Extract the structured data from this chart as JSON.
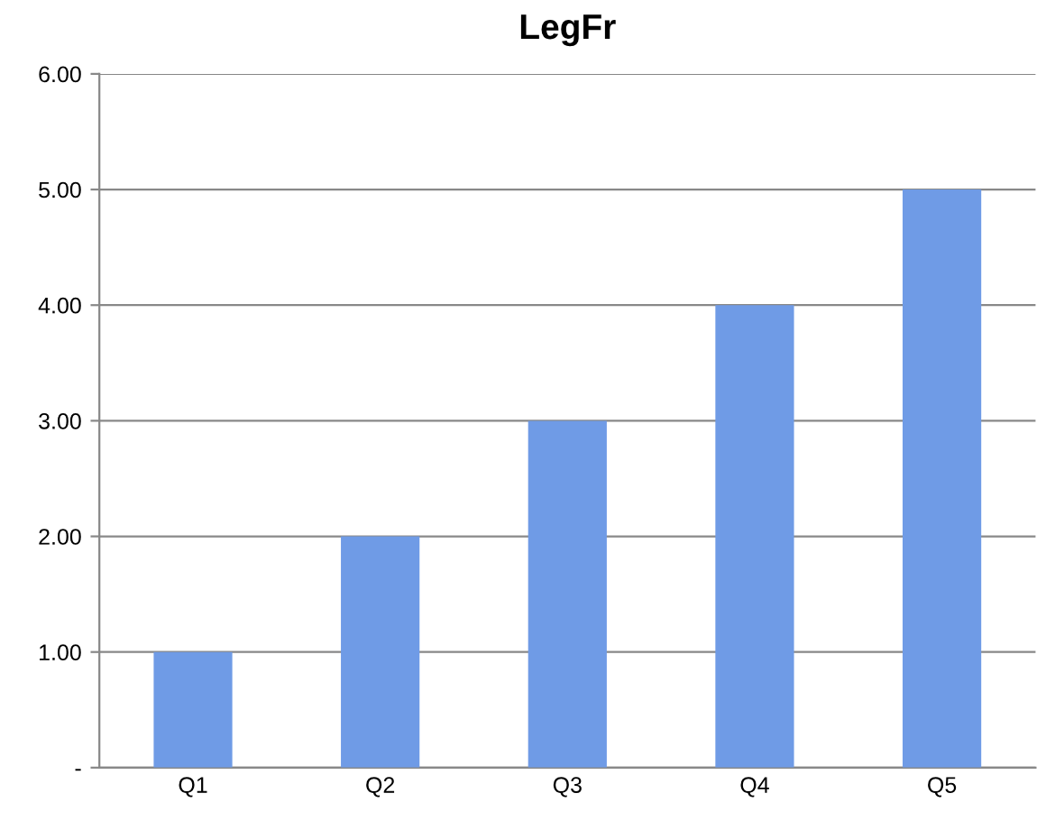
{
  "chart_data": {
    "type": "bar",
    "title": "LegFr",
    "categories": [
      "Q1",
      "Q2",
      "Q3",
      "Q4",
      "Q5"
    ],
    "series": [
      {
        "color": "#6f9be6",
        "values": [
          1,
          2,
          3,
          4,
          5
        ]
      }
    ],
    "ylim": [
      0,
      6
    ],
    "yticks": [
      {
        "value": 0,
        "label": "-"
      },
      {
        "value": 1,
        "label": "1.00"
      },
      {
        "value": 2,
        "label": "2.00"
      },
      {
        "value": 3,
        "label": "3.00"
      },
      {
        "value": 4,
        "label": "4.00"
      },
      {
        "value": 5,
        "label": "5.00"
      },
      {
        "value": 6,
        "label": "6.00"
      }
    ],
    "grid": "y",
    "legend": false
  }
}
